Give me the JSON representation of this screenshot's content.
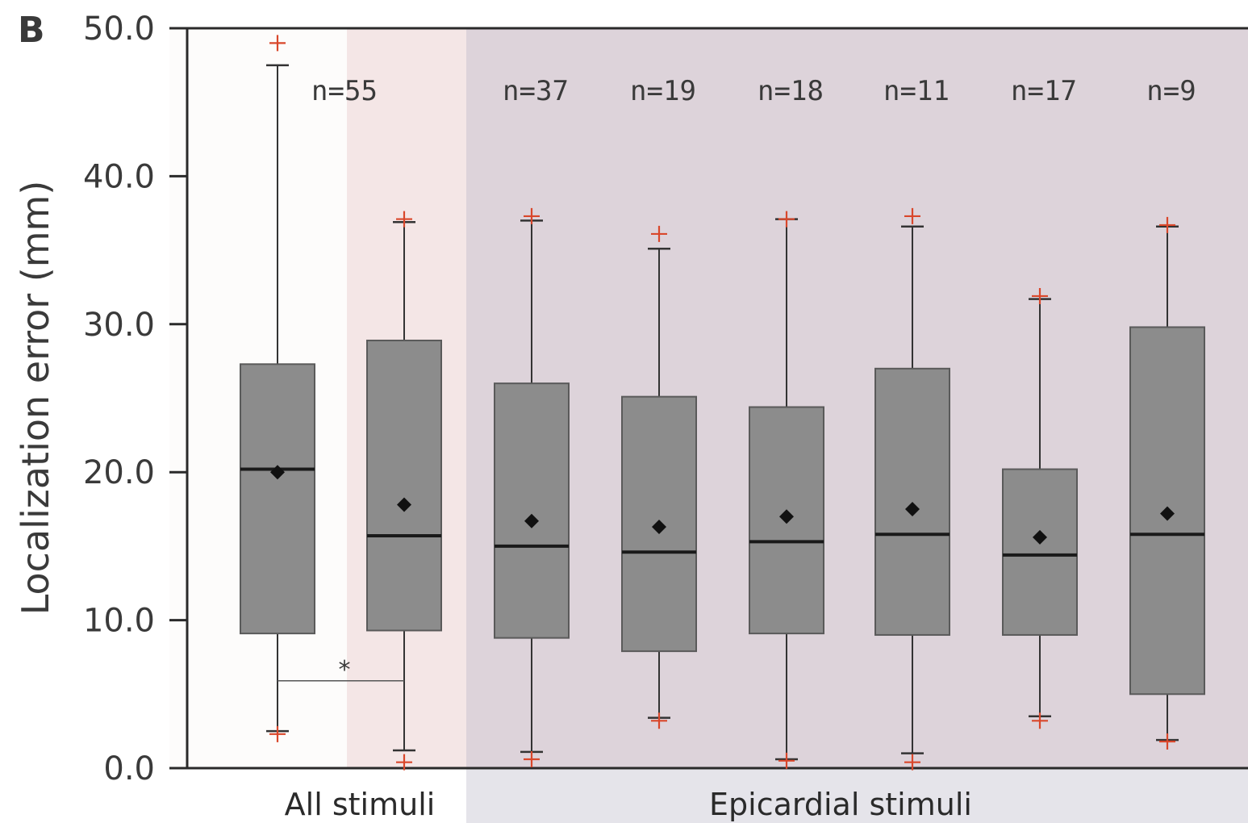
{
  "panel_label": "B",
  "chart_data": {
    "type": "box",
    "ylabel": "Localization error (mm)",
    "ylim": [
      0,
      50
    ],
    "yticks": [
      "0.0",
      "10.0",
      "20.0",
      "30.0",
      "40.0",
      "50.0"
    ],
    "ytick_values": [
      0,
      10,
      20,
      30,
      40,
      50
    ],
    "groups": [
      {
        "label": "All stimuli",
        "boxes": [
          0,
          1
        ]
      },
      {
        "label": "Epicardial stimuli",
        "boxes": [
          2,
          3,
          4,
          5,
          6,
          7
        ]
      }
    ],
    "significance": {
      "label": "*",
      "between": [
        0,
        1
      ],
      "y": 5.9
    },
    "boxes": [
      {
        "n_label": "",
        "whisker_low": 2.5,
        "q1": 9.1,
        "median": 20.2,
        "q3": 27.3,
        "whisker_high": 47.5,
        "mean": 20.0,
        "outliers": [
          49.0,
          2.3
        ]
      },
      {
        "n_label": "n=55",
        "whisker_low": 1.2,
        "q1": 9.3,
        "median": 15.7,
        "q3": 28.9,
        "whisker_high": 36.9,
        "mean": 17.8,
        "outliers": [
          37.1,
          0.4
        ]
      },
      {
        "n_label": "n=37",
        "whisker_low": 1.1,
        "q1": 8.8,
        "median": 15.0,
        "q3": 26.0,
        "whisker_high": 37.0,
        "mean": 16.7,
        "outliers": [
          37.3,
          0.6
        ]
      },
      {
        "n_label": "n=19",
        "whisker_low": 3.4,
        "q1": 7.9,
        "median": 14.6,
        "q3": 25.1,
        "whisker_high": 35.1,
        "mean": 16.3,
        "outliers": [
          36.1,
          3.2
        ]
      },
      {
        "n_label": "n=18",
        "whisker_low": 0.6,
        "q1": 9.1,
        "median": 15.3,
        "q3": 24.4,
        "whisker_high": 37.1,
        "mean": 17.0,
        "outliers": [
          37.1,
          0.5
        ]
      },
      {
        "n_label": "n=11",
        "whisker_low": 1.0,
        "q1": 9.0,
        "median": 15.8,
        "q3": 27.0,
        "whisker_high": 36.6,
        "mean": 17.5,
        "outliers": [
          37.3,
          0.4
        ]
      },
      {
        "n_label": "n=17",
        "whisker_low": 3.5,
        "q1": 9.0,
        "median": 14.4,
        "q3": 20.2,
        "whisker_high": 31.7,
        "mean": 15.6,
        "outliers": [
          31.9,
          3.2
        ]
      },
      {
        "n_label": "n=9",
        "whisker_low": 1.9,
        "q1": 5.0,
        "median": 15.8,
        "q3": 29.8,
        "whisker_high": 36.6,
        "mean": 17.2,
        "outliers": [
          36.7,
          1.8
        ]
      }
    ],
    "colors": {
      "box_fill": "#8c8c8c",
      "box_stroke": "#5a5a5a",
      "median": "#1a1a1a",
      "mean_marker": "#111111",
      "outlier": "#d9472b",
      "region_all": "#fdfcfb",
      "region_all_b": "#f4e6e6",
      "region_epi": "#ddd3da",
      "group_epi_band": "#e5e4ea"
    }
  }
}
